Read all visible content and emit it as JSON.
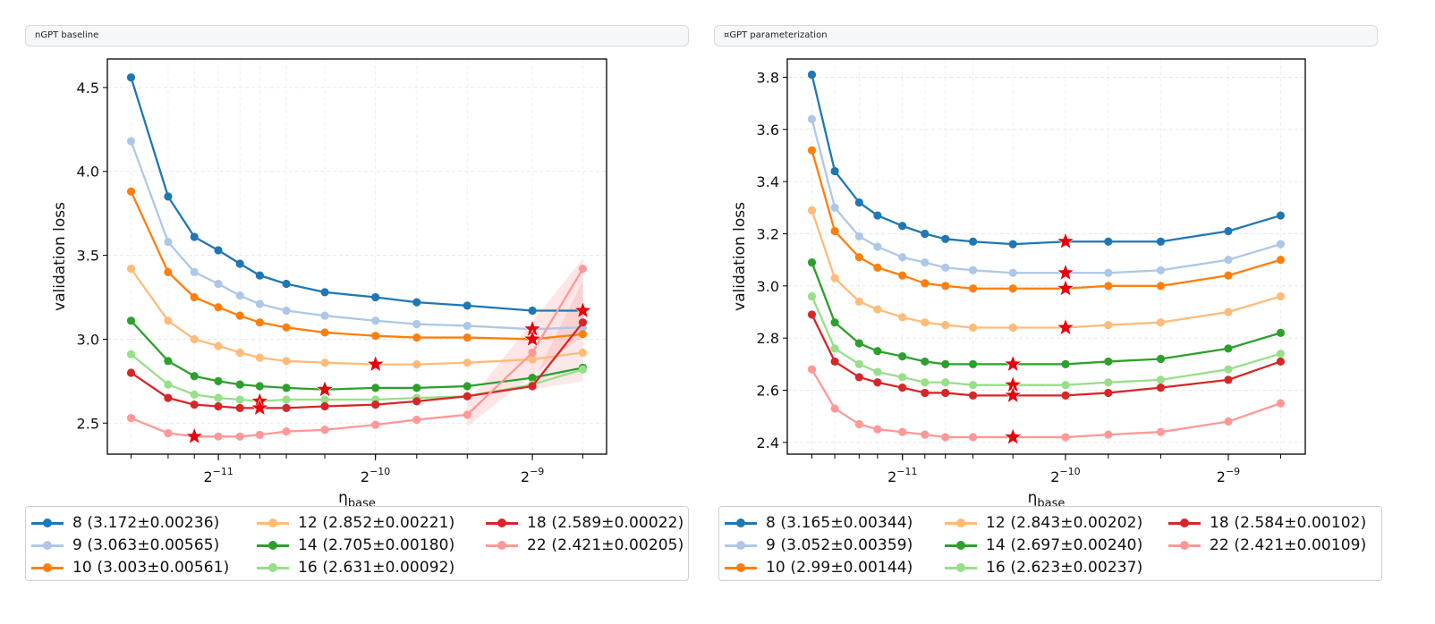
{
  "panels": [
    {
      "tab_title": "nGPT baseline",
      "legend": [
        "8 (3.172±0.00236)",
        "9 (3.063±0.00565)",
        "10 (3.003±0.00561)",
        "12 (2.852±0.00221)",
        "14 (2.705±0.00180)",
        "16 (2.631±0.00092)",
        "18 (2.589±0.00022)",
        "22 (2.421±0.00205)"
      ]
    },
    {
      "tab_title": "¤GPT parameterization",
      "legend": [
        "8 (3.165±0.00344)",
        "9 (3.052±0.00359)",
        "10 (2.99±0.00144)",
        "12 (2.843±0.00202)",
        "14 (2.697±0.00240)",
        "16 (2.623±0.00237)",
        "18 (2.584±0.00102)",
        "22 (2.421±0.00109)"
      ]
    }
  ],
  "chart_data": [
    {
      "type": "line",
      "title": "nGPT baseline",
      "xlabel": "η_base",
      "ylabel": "validation loss",
      "xscale": "log2",
      "xlim": [
        0.000299,
        0.00271
      ],
      "ylim": [
        2.315,
        4.67
      ],
      "xticks_major": [
        {
          "value": 0.00048828125,
          "label": "2^-11"
        },
        {
          "value": 0.0009765625,
          "label": "2^-10"
        },
        {
          "value": 0.001953125,
          "label": "2^-9"
        }
      ],
      "yticks": [
        2.5,
        3.0,
        3.5,
        4.0,
        4.5
      ],
      "grid": true,
      "legend_placement": "below",
      "colors": [
        "#1f77b4",
        "#aec7e8",
        "#ff7f0e",
        "#ffbb78",
        "#2ca02c",
        "#98df8a",
        "#d62728",
        "#ff9896"
      ],
      "x": [
        0.000332,
        0.000391,
        0.000439,
        0.000488,
        0.000537,
        0.000586,
        0.000659,
        0.000781,
        0.000977,
        0.001172,
        0.001465,
        0.001953,
        0.00244
      ],
      "series": [
        {
          "name": "8 (3.172±0.00236)",
          "values": [
            4.56,
            3.85,
            3.61,
            3.53,
            3.45,
            3.38,
            3.33,
            3.28,
            3.25,
            3.22,
            3.2,
            3.17,
            3.17
          ],
          "best_index": 12
        },
        {
          "name": "9 (3.063±0.00565)",
          "values": [
            4.18,
            3.58,
            3.4,
            3.33,
            3.26,
            3.21,
            3.17,
            3.14,
            3.11,
            3.09,
            3.08,
            3.06,
            3.07
          ],
          "best_index": 11
        },
        {
          "name": "10 (3.003±0.00561)",
          "values": [
            3.88,
            3.4,
            3.25,
            3.19,
            3.14,
            3.1,
            3.07,
            3.04,
            3.02,
            3.01,
            3.01,
            3.0,
            3.03
          ],
          "best_index": 11
        },
        {
          "name": "12 (2.852±0.00221)",
          "values": [
            3.42,
            3.11,
            3.0,
            2.96,
            2.92,
            2.89,
            2.87,
            2.86,
            2.85,
            2.85,
            2.86,
            2.88,
            2.92
          ],
          "best_index": 8
        },
        {
          "name": "14 (2.705±0.00180)",
          "values": [
            3.11,
            2.87,
            2.78,
            2.75,
            2.73,
            2.72,
            2.71,
            2.7,
            2.71,
            2.71,
            2.72,
            2.77,
            2.83
          ],
          "best_index": 7
        },
        {
          "name": "16 (2.631±0.00092)",
          "values": [
            2.91,
            2.73,
            2.67,
            2.65,
            2.64,
            2.63,
            2.64,
            2.64,
            2.64,
            2.65,
            2.66,
            2.73,
            2.82
          ],
          "best_index": 5
        },
        {
          "name": "18 (2.589±0.00022)",
          "values": [
            2.8,
            2.65,
            2.61,
            2.6,
            2.59,
            2.59,
            2.59,
            2.6,
            2.61,
            2.63,
            2.66,
            2.72,
            3.1
          ],
          "best_index": 5
        },
        {
          "name": "22 (2.421±0.00205)",
          "values": [
            2.53,
            2.44,
            2.42,
            2.42,
            2.42,
            2.43,
            2.45,
            2.46,
            2.49,
            2.52,
            2.55,
            2.92,
            3.42
          ],
          "best_index": 2
        }
      ]
    },
    {
      "type": "line",
      "title": "¤GPT parameterization",
      "xlabel": "η_base",
      "ylabel": "validation loss",
      "xscale": "log2",
      "xlim": [
        0.000299,
        0.00271
      ],
      "ylim": [
        2.355,
        3.87
      ],
      "xticks_major": [
        {
          "value": 0.00048828125,
          "label": "2^-11"
        },
        {
          "value": 0.0009765625,
          "label": "2^-10"
        },
        {
          "value": 0.001953125,
          "label": "2^-9"
        }
      ],
      "yticks": [
        2.4,
        2.6,
        2.8,
        3.0,
        3.2,
        3.4,
        3.6,
        3.8
      ],
      "grid": true,
      "legend_placement": "below",
      "colors": [
        "#1f77b4",
        "#aec7e8",
        "#ff7f0e",
        "#ffbb78",
        "#2ca02c",
        "#98df8a",
        "#d62728",
        "#ff9896"
      ],
      "x": [
        0.000332,
        0.000366,
        0.000406,
        0.000439,
        0.000488,
        0.000537,
        0.000586,
        0.000659,
        0.000781,
        0.000977,
        0.001172,
        0.001465,
        0.001953,
        0.00244
      ],
      "series": [
        {
          "name": "8 (3.165±0.00344)",
          "values": [
            3.81,
            3.44,
            3.32,
            3.27,
            3.23,
            3.2,
            3.18,
            3.17,
            3.16,
            3.17,
            3.17,
            3.17,
            3.21,
            3.27
          ],
          "best_index": 9
        },
        {
          "name": "9 (3.052±0.00359)",
          "values": [
            3.64,
            3.3,
            3.19,
            3.15,
            3.11,
            3.09,
            3.07,
            3.06,
            3.05,
            3.05,
            3.05,
            3.06,
            3.1,
            3.16
          ],
          "best_index": 9
        },
        {
          "name": "10 (2.99±0.00144)",
          "values": [
            3.52,
            3.21,
            3.11,
            3.07,
            3.04,
            3.01,
            3.0,
            2.99,
            2.99,
            2.99,
            3.0,
            3.0,
            3.04,
            3.1
          ],
          "best_index": 9
        },
        {
          "name": "12 (2.843±0.00202)",
          "values": [
            3.29,
            3.03,
            2.94,
            2.91,
            2.88,
            2.86,
            2.85,
            2.84,
            2.84,
            2.84,
            2.85,
            2.86,
            2.9,
            2.96
          ],
          "best_index": 9
        },
        {
          "name": "14 (2.697±0.00240)",
          "values": [
            3.09,
            2.86,
            2.78,
            2.75,
            2.73,
            2.71,
            2.7,
            2.7,
            2.7,
            2.7,
            2.71,
            2.72,
            2.76,
            2.82
          ],
          "best_index": 8
        },
        {
          "name": "16 (2.623±0.00237)",
          "values": [
            2.96,
            2.76,
            2.7,
            2.67,
            2.65,
            2.63,
            2.63,
            2.62,
            2.62,
            2.62,
            2.63,
            2.64,
            2.68,
            2.74
          ],
          "best_index": 8
        },
        {
          "name": "18 (2.584±0.00102)",
          "values": [
            2.89,
            2.71,
            2.65,
            2.63,
            2.61,
            2.59,
            2.59,
            2.58,
            2.58,
            2.58,
            2.59,
            2.61,
            2.64,
            2.71
          ],
          "best_index": 8
        },
        {
          "name": "22 (2.421±0.00109)",
          "values": [
            2.68,
            2.53,
            2.47,
            2.45,
            2.44,
            2.43,
            2.42,
            2.42,
            2.42,
            2.42,
            2.43,
            2.44,
            2.48,
            2.55
          ],
          "best_index": 8
        }
      ]
    }
  ]
}
